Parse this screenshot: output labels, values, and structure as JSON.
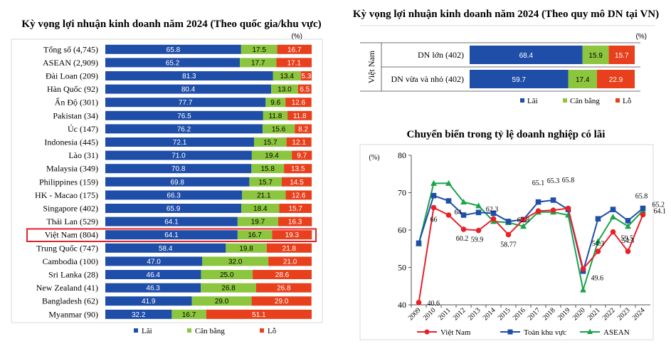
{
  "colors": {
    "lai": "#1f4ea8",
    "can_bang": "#8cc63f",
    "lo": "#e8401c",
    "highlight": "#e8202a",
    "asean": "#1aa34a",
    "vietnam_line": "#e8202a",
    "toan_khu_vuc": "#1f4ea8"
  },
  "chart_data": [
    {
      "type": "bar",
      "stacked": true,
      "orientation": "horizontal",
      "title": "Kỳ vọng lợi nhuận kinh doanh năm 2024 (Theo quốc gia/khu vực)",
      "unit": "(%)",
      "categories": [
        "Tổng số (4,745)",
        "ASEAN (2,909)",
        "Đài Loan (209)",
        "Hàn Quốc (92)",
        "Ấn Độ (301)",
        "Pakistan (34)",
        "Úc (147)",
        "Indonesia (445)",
        "Lào (31)",
        "Malaysia (349)",
        "Philippines (159)",
        "HK - Macao (175)",
        "Singapore (402)",
        "Thái Lan (529)",
        "Việt Nam (804)",
        "Trung Quốc (747)",
        "Cambodia (100)",
        "Sri Lanka (28)",
        "New Zealand (41)",
        "Bangladesh (62)",
        "Myanmar (90)"
      ],
      "highlight_index": 14,
      "series": [
        {
          "name": "Lãi",
          "values": [
            65.8,
            65.2,
            81.3,
            80.4,
            77.7,
            76.5,
            76.2,
            72.1,
            71.0,
            70.8,
            69.8,
            66.3,
            65.9,
            64.1,
            64.1,
            58.4,
            47.0,
            46.4,
            46.3,
            41.9,
            32.2
          ]
        },
        {
          "name": "Cân bằng",
          "values": [
            17.5,
            17.7,
            13.4,
            13.0,
            9.6,
            11.8,
            15.6,
            15.7,
            19.4,
            15.8,
            15.7,
            21.1,
            18.4,
            19.7,
            16.7,
            19.8,
            32.0,
            25.0,
            26.8,
            29.0,
            16.7
          ]
        },
        {
          "name": "Lỗ",
          "values": [
            16.7,
            17.1,
            5.3,
            6.5,
            12.6,
            11.8,
            8.2,
            12.1,
            9.7,
            13.5,
            14.5,
            12.6,
            15.7,
            16.3,
            19.3,
            21.8,
            21.0,
            28.6,
            26.8,
            29.0,
            51.1
          ]
        }
      ],
      "xlim": [
        0,
        100
      ],
      "legend": "bottom"
    },
    {
      "type": "bar",
      "stacked": true,
      "orientation": "horizontal",
      "title": "Kỳ vọng lợi nhuận kinh doanh năm 2024 (Theo quy mô DN tại VN)",
      "unit": "(%)",
      "group_label": "Việt Nam",
      "categories": [
        "DN lớn (402)",
        "DN vừa và nhỏ (402)"
      ],
      "series": [
        {
          "name": "Lãi",
          "values": [
            68.4,
            59.7
          ]
        },
        {
          "name": "Cân bằng",
          "values": [
            15.9,
            17.4
          ]
        },
        {
          "name": "Lỗ",
          "values": [
            15.7,
            22.9
          ]
        }
      ],
      "xlim": [
        0,
        100
      ],
      "legend": "bottom"
    },
    {
      "type": "line",
      "title": "Chuyển biến trong tỷ lệ doanh nghiệp có lãi",
      "ylabel": "(%)",
      "x": [
        "2009",
        "2010",
        "2011",
        "2012",
        "2013",
        "2014",
        "2015",
        "2016",
        "2017",
        "2018",
        "2019",
        "2020",
        "2021",
        "2022",
        "2023",
        "2024"
      ],
      "ylim": [
        40,
        80
      ],
      "yticks": [
        "40",
        "50",
        "60",
        "70",
        "80"
      ],
      "grid": false,
      "legend": "bottom",
      "series": [
        {
          "name": "Việt Nam",
          "values": [
            40.6,
            66,
            64,
            60.2,
            59.9,
            63,
            58.77,
            62.8,
            65.1,
            65.3,
            65.8,
            49.6,
            54.3,
            59.5,
            54.3,
            64.1
          ],
          "labels": [
            "40.6",
            "66",
            "64",
            "60.2",
            "59.9",
            "",
            "58.77",
            "",
            "",
            "",
            "",
            "49.6",
            "54.3",
            "59.5",
            "54.3",
            "64.1"
          ]
        },
        {
          "name": "Toàn khu vực",
          "values": [
            56.5,
            69.2,
            67.8,
            64.0,
            64.7,
            64.5,
            62.3,
            62.8,
            67.5,
            68.0,
            65.5,
            49.0,
            63.0,
            65.5,
            62.5,
            65.8
          ],
          "labels": [
            "",
            "",
            "",
            "",
            "",
            "",
            "",
            "",
            "",
            "",
            "",
            "",
            "",
            "",
            "",
            "65.8"
          ]
        },
        {
          "name": "ASEAN",
          "values": [
            56.3,
            72.5,
            72.5,
            67.5,
            66.5,
            62.3,
            62.0,
            61.0,
            64.8,
            64.8,
            64.0,
            44.0,
            57.0,
            63.5,
            61.0,
            65.2
          ],
          "labels": [
            "",
            "",
            "",
            "",
            "",
            "62.3",
            "",
            "",
            "",
            "",
            "",
            "",
            "",
            "",
            "",
            "65.2"
          ]
        }
      ],
      "top_labels": [
        {
          "x": "2017",
          "text": "65.1"
        },
        {
          "x": "2018",
          "text": "65.3"
        },
        {
          "x": "2019",
          "text": "65.8"
        },
        {
          "x": "2016",
          "text": "62.8"
        }
      ]
    }
  ]
}
